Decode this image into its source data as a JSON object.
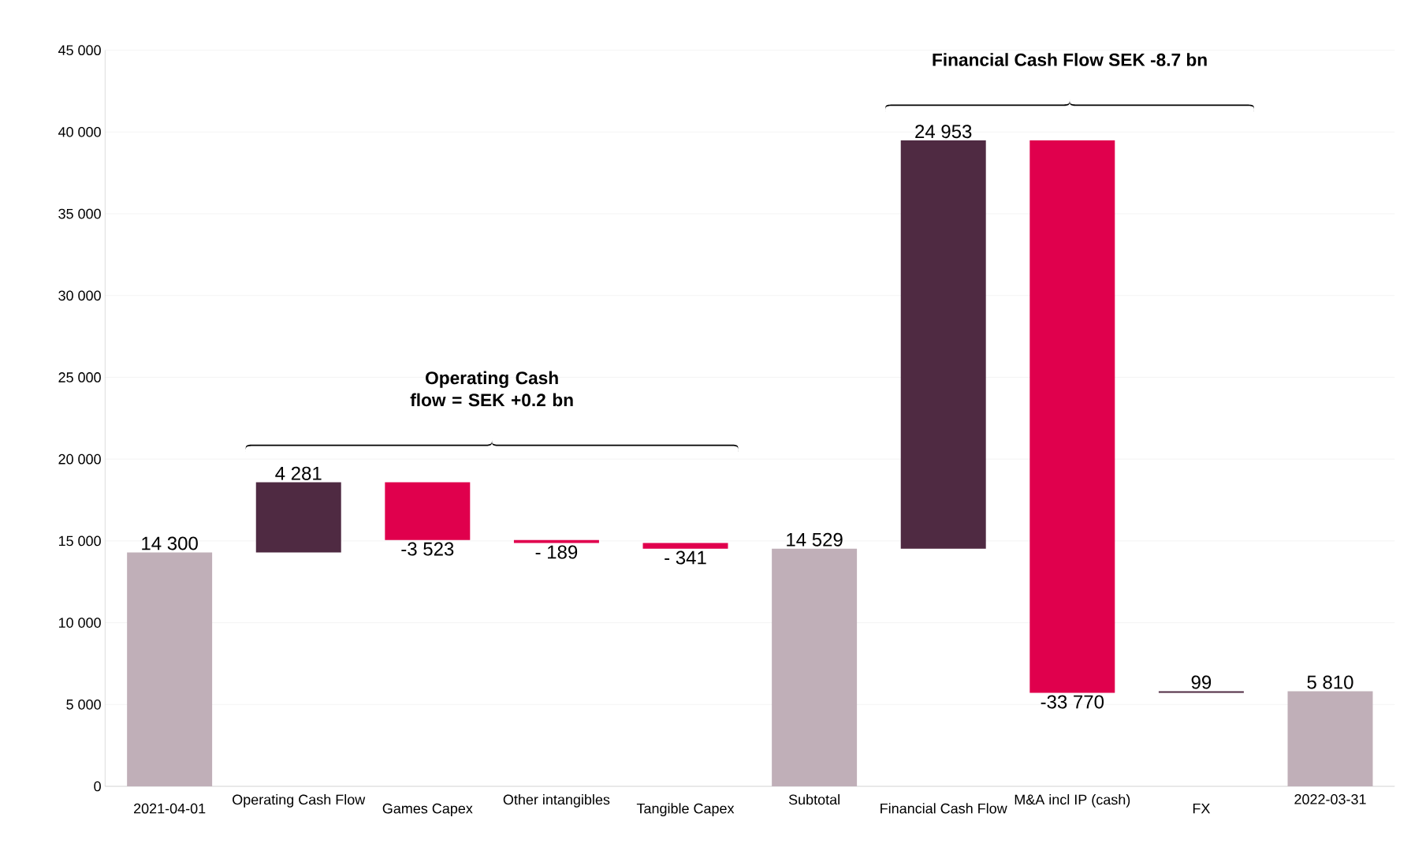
{
  "chart_data": {
    "type": "bar",
    "categories": [
      "2021-04-01",
      "Operating Cash Flow",
      "Games Capex",
      "Other intangibles",
      "Tangible Capex",
      "Subtotal",
      "Financial Cash Flow",
      "M&A incl IP (cash)",
      "FX",
      "2022-03-31"
    ],
    "values": [
      14300,
      4281,
      -3523,
      -189,
      -341,
      14529,
      24953,
      -33770,
      99,
      5810
    ],
    "base": [
      0,
      14300,
      18581,
      15058,
      14869,
      0,
      14529,
      39482,
      5712,
      0
    ],
    "colors": [
      "#c0afb8",
      "#4f2a42",
      "#e0004d",
      "#e0004d",
      "#e0004d",
      "#c0afb8",
      "#4f2a42",
      "#e0004d",
      "#4f2a42",
      "#c0afb8"
    ],
    "value_labels": [
      "14 300",
      "4 281",
      "-3 523",
      "- 189",
      "- 341",
      "14 529",
      "24 953",
      "-33 770",
      "99",
      "5 810"
    ],
    "ylim": [
      0,
      45000
    ],
    "yticks": [
      {
        "value": 0,
        "label": "0"
      },
      {
        "value": 5000,
        "label": "5 000"
      },
      {
        "value": 10000,
        "label": "10 000"
      },
      {
        "value": 15000,
        "label": "15 000"
      },
      {
        "value": 20000,
        "label": "20 000"
      },
      {
        "value": 25000,
        "label": "25 000"
      },
      {
        "value": 30000,
        "label": "30 000"
      },
      {
        "value": 35000,
        "label": "35 000"
      },
      {
        "value": 40000,
        "label": "40 000"
      },
      {
        "value": 45000,
        "label": "45 000"
      }
    ],
    "grid": "y",
    "annotations": [
      "Operating Cash flow = SEK +0.2 bn",
      "Financial Cash Flow SEK -8.7 bn"
    ]
  }
}
